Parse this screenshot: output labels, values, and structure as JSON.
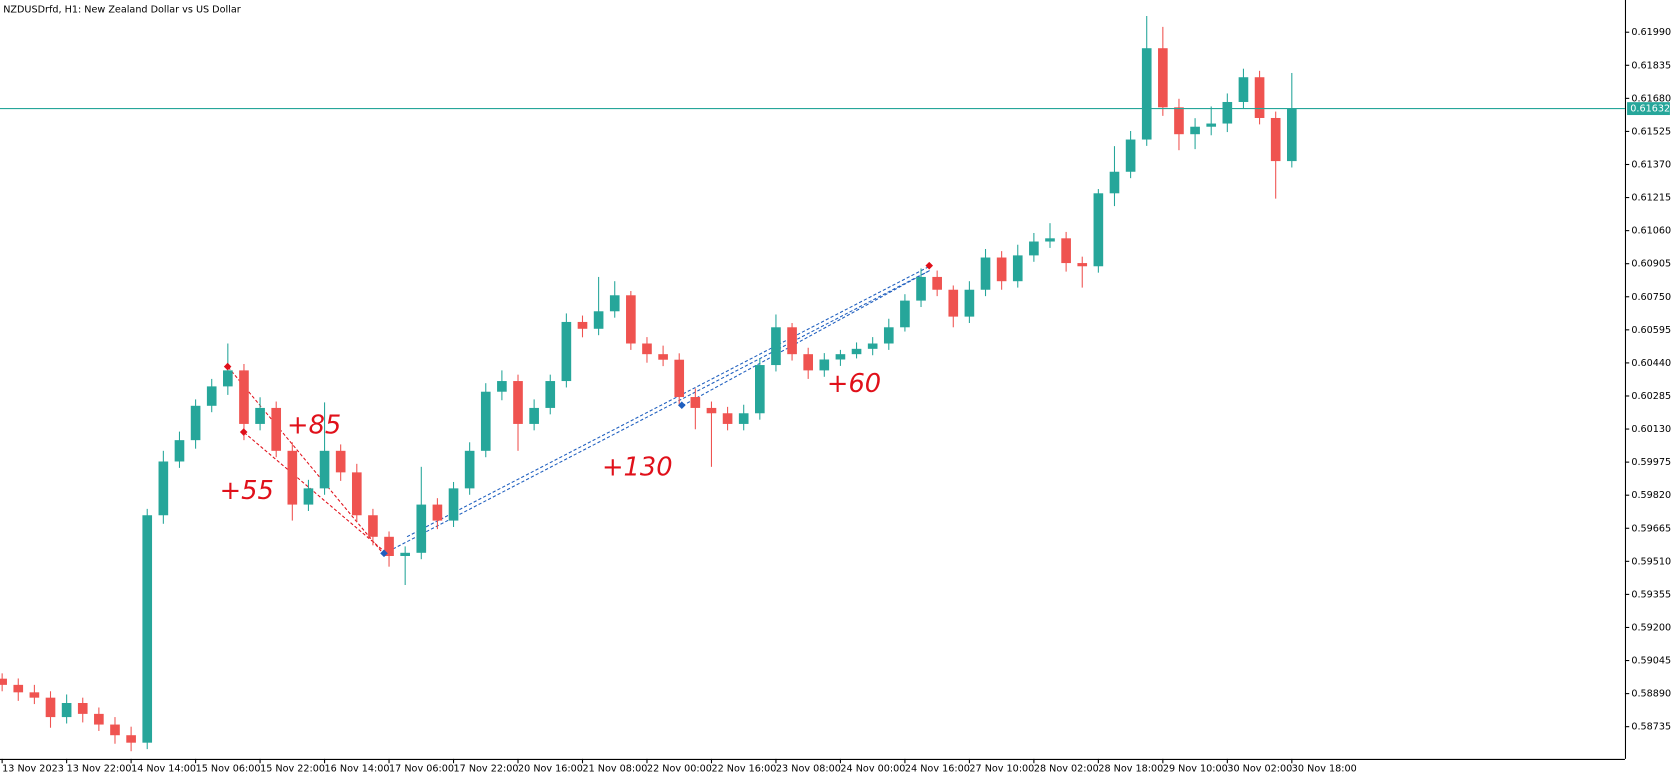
{
  "chart_data": {
    "type": "candlestick",
    "title": "NZDUSDrfd, H1:  New Zealand Dollar vs US Dollar",
    "categories": [
      "13 Nov 2023",
      null,
      null,
      null,
      "13 Nov 22:00",
      null,
      null,
      null,
      "14 Nov 14:00",
      null,
      null,
      null,
      "15 Nov 06:00",
      null,
      null,
      null,
      "15 Nov 22:00",
      null,
      null,
      null,
      "16 Nov 14:00",
      null,
      null,
      null,
      "17 Nov 06:00",
      null,
      null,
      null,
      "17 Nov 22:00",
      null,
      null,
      null,
      "20 Nov 16:00",
      null,
      null,
      null,
      "21 Nov 08:00",
      null,
      null,
      null,
      "22 Nov 00:00",
      null,
      null,
      null,
      "22 Nov 16:00",
      null,
      null,
      null,
      "23 Nov 08:00",
      null,
      null,
      null,
      "24 Nov 00:00",
      null,
      null,
      null,
      "24 Nov 16:00",
      null,
      null,
      null,
      "27 Nov 10:00",
      null,
      null,
      null,
      "28 Nov 02:00",
      null,
      null,
      null,
      "28 Nov 18:00",
      null,
      null,
      null,
      "29 Nov 10:00",
      null,
      null,
      null,
      "30 Nov 02:00",
      null,
      null,
      null,
      "30 Nov 18:00"
    ],
    "open": [
      0.5896,
      0.58931,
      0.58896,
      0.58871,
      0.5878,
      0.58846,
      0.58795,
      0.58745,
      0.58695,
      0.5866,
      0.59726,
      0.59978,
      0.60078,
      0.60239,
      0.6033,
      0.60405,
      0.60154,
      0.60229,
      0.60028,
      0.59776,
      0.59852,
      0.60028,
      0.59927,
      0.59726,
      0.59625,
      0.59535,
      0.5955,
      0.59776,
      0.59701,
      0.59852,
      0.60028,
      0.60305,
      0.60355,
      0.60154,
      0.60229,
      0.60355,
      0.60632,
      0.606,
      0.60682,
      0.60757,
      0.60531,
      0.60481,
      0.60455,
      0.6028,
      0.60229,
      0.60204,
      0.60154,
      0.60204,
      0.6043,
      0.60607,
      0.60481,
      0.60405,
      0.60456,
      0.60481,
      0.60506,
      0.60531,
      0.60607,
      0.60732,
      0.60843,
      0.60783,
      0.60657,
      0.60783,
      0.60934,
      0.60823,
      0.60944,
      0.61009,
      0.61024,
      0.60908,
      0.60893,
      0.61235,
      0.61336,
      0.61487,
      0.61915,
      0.61638,
      0.61512,
      0.61547,
      0.61562,
      0.61663,
      0.61779,
      0.61588,
      0.61386
    ],
    "high": [
      0.58985,
      0.58961,
      0.58931,
      0.58901,
      0.58886,
      0.58871,
      0.58825,
      0.5878,
      0.58735,
      0.59756,
      0.60028,
      0.60118,
      0.60269,
      0.60365,
      0.60531,
      0.60435,
      0.60279,
      0.60259,
      0.60068,
      0.59892,
      0.60255,
      0.60058,
      0.59967,
      0.59756,
      0.5965,
      0.5958,
      0.59953,
      0.59806,
      0.59882,
      0.60068,
      0.60345,
      0.60405,
      0.60385,
      0.60269,
      0.60385,
      0.60672,
      0.60662,
      0.60843,
      0.60823,
      0.60777,
      0.60561,
      0.60521,
      0.60485,
      0.6032,
      0.60259,
      0.60234,
      0.60244,
      0.6046,
      0.60667,
      0.60627,
      0.60511,
      0.60486,
      0.60501,
      0.60536,
      0.60561,
      0.60647,
      0.60762,
      0.60883,
      0.60873,
      0.60803,
      0.60823,
      0.60974,
      0.60964,
      0.60994,
      0.61049,
      0.61095,
      0.61054,
      0.60938,
      0.61255,
      0.61456,
      0.61527,
      0.62066,
      0.62015,
      0.61678,
      0.61587,
      0.61642,
      0.61703,
      0.61819,
      0.61809,
      0.61618,
      0.61799
    ],
    "low": [
      0.58901,
      0.58856,
      0.58841,
      0.5873,
      0.5875,
      0.58755,
      0.58715,
      0.58655,
      0.5862,
      0.5863,
      0.59686,
      0.59948,
      0.60038,
      0.60209,
      0.6029,
      0.60078,
      0.60124,
      0.59998,
      0.59701,
      0.59746,
      0.59822,
      0.59887,
      0.59696,
      0.59585,
      0.59485,
      0.59399,
      0.5952,
      0.59661,
      0.59671,
      0.59822,
      0.59998,
      0.60265,
      0.60028,
      0.60124,
      0.60199,
      0.60325,
      0.6056,
      0.6057,
      0.60652,
      0.60501,
      0.60441,
      0.60425,
      0.6024,
      0.60129,
      0.59953,
      0.60124,
      0.60124,
      0.60174,
      0.604,
      0.60451,
      0.60365,
      0.60375,
      0.60426,
      0.60461,
      0.60476,
      0.60501,
      0.60587,
      0.60702,
      0.60753,
      0.60607,
      0.60627,
      0.60753,
      0.60783,
      0.60793,
      0.60914,
      0.60979,
      0.60868,
      0.60793,
      0.60863,
      0.61175,
      0.61306,
      0.61457,
      0.61598,
      0.61437,
      0.61442,
      0.61507,
      0.61522,
      0.61633,
      0.61558,
      0.6121,
      0.61356
    ],
    "close": [
      0.58931,
      0.58896,
      0.58871,
      0.5878,
      0.58846,
      0.58795,
      0.58745,
      0.58695,
      0.5866,
      0.59726,
      0.59978,
      0.60078,
      0.60239,
      0.6033,
      0.60405,
      0.60154,
      0.60229,
      0.60028,
      0.59776,
      0.59852,
      0.60028,
      0.59927,
      0.59726,
      0.59625,
      0.59535,
      0.5955,
      0.59776,
      0.59701,
      0.59852,
      0.60028,
      0.60305,
      0.60355,
      0.60154,
      0.60229,
      0.60355,
      0.60632,
      0.606,
      0.60682,
      0.60757,
      0.60531,
      0.60481,
      0.60455,
      0.6028,
      0.60229,
      0.60204,
      0.60154,
      0.60204,
      0.6043,
      0.60607,
      0.60481,
      0.60405,
      0.60456,
      0.60481,
      0.60506,
      0.60531,
      0.60607,
      0.60732,
      0.60843,
      0.60783,
      0.60657,
      0.60783,
      0.60934,
      0.60823,
      0.60944,
      0.61009,
      0.61024,
      0.60908,
      0.60893,
      0.61235,
      0.61336,
      0.61487,
      0.61915,
      0.61638,
      0.61512,
      0.61547,
      0.61562,
      0.61663,
      0.61779,
      0.61588,
      0.61386,
      0.61632
    ],
    "up_color": "#26a69a",
    "down_color": "#ef5350",
    "current_price": 0.61632,
    "current_price_color": "#26a69a",
    "ylim": [
      0.58584,
      0.62141
    ],
    "yticks": [
      0.58735,
      {
        "value": 0.5889,
        "label": "0.58890"
      },
      0.59045,
      {
        "value": 0.592,
        "label": "0.59200"
      },
      0.59355,
      {
        "value": 0.5951,
        "label": "0.59510"
      },
      0.59665,
      {
        "value": 0.5982,
        "label": "0.59820"
      },
      0.59975,
      {
        "value": 0.6013,
        "label": "0.60130"
      },
      0.60285,
      {
        "value": 0.6044,
        "label": "0.60440"
      },
      0.60595,
      {
        "value": 0.6075,
        "label": "0.60750"
      },
      0.60905,
      {
        "value": 0.6106,
        "label": "0.61060"
      },
      0.61215,
      {
        "value": 0.6137,
        "label": "0.61370"
      },
      0.61525,
      {
        "value": 0.6168,
        "label": "0.61680"
      },
      0.61835,
      {
        "value": 0.6199,
        "label": "0.61990"
      }
    ],
    "grid": false,
    "annotations": [
      "+85",
      "+55",
      "+130",
      "+60"
    ]
  }
}
